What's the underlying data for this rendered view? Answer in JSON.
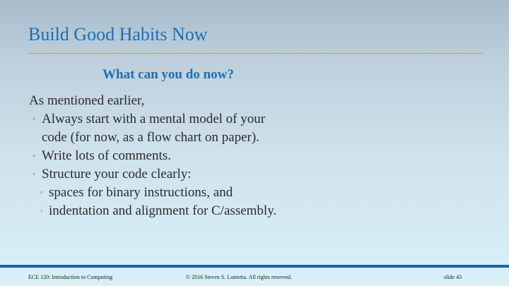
{
  "slide": {
    "title": "Build Good Habits Now",
    "subheading": "What can you do now?",
    "intro": "As mentioned earlier,",
    "bullets": [
      {
        "text": "Always start with a mental model of your",
        "continuation": "code (for now, as a flow chart on paper)."
      },
      {
        "text": "Write lots of comments."
      },
      {
        "text": "Structure your code clearly:"
      }
    ],
    "sub_bullets": [
      {
        "text": "spaces for binary instructions, and"
      },
      {
        "text": "indentation and alignment for C/assembly."
      }
    ],
    "bullet_marker": "◦"
  },
  "footer": {
    "course": "ECE 120: Introduction to Computing",
    "copyright": "© 2016 Steven S. Lumetta.  All rights reserved.",
    "slide_number": "slide 43"
  },
  "colors": {
    "title": "#1b6fb3",
    "rule": "#b9a64a",
    "footer_bar": "#1566a8",
    "text": "#2b2b2b"
  }
}
